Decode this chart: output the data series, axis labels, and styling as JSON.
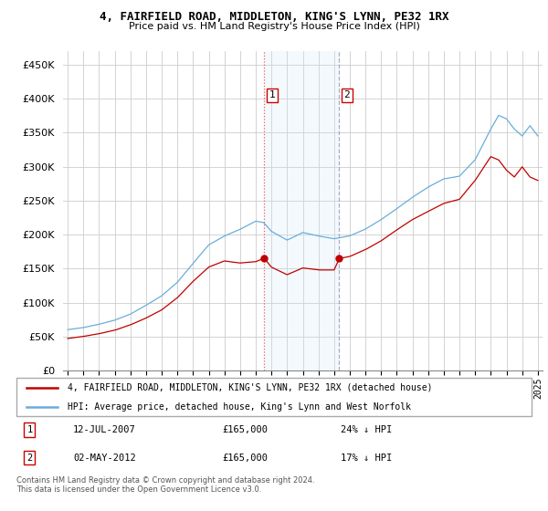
{
  "title": "4, FAIRFIELD ROAD, MIDDLETON, KING'S LYNN, PE32 1RX",
  "subtitle": "Price paid vs. HM Land Registry's House Price Index (HPI)",
  "legend_line1": "4, FAIRFIELD ROAD, MIDDLETON, KING'S LYNN, PE32 1RX (detached house)",
  "legend_line2": "HPI: Average price, detached house, King's Lynn and West Norfolk",
  "sale1_date": "12-JUL-2007",
  "sale1_price": "£165,000",
  "sale1_hpi": "24% ↓ HPI",
  "sale2_date": "02-MAY-2012",
  "sale2_price": "£165,000",
  "sale2_hpi": "17% ↓ HPI",
  "footer": "Contains HM Land Registry data © Crown copyright and database right 2024.\nThis data is licensed under the Open Government Licence v3.0.",
  "hpi_color": "#6aaddc",
  "price_color": "#c00000",
  "vline1_color": "#ff4444",
  "vline2_color": "#8888bb",
  "span_color": "#d0e8f8",
  "background_color": "#ffffff",
  "ylim": [
    0,
    470000
  ],
  "yticks": [
    0,
    50000,
    100000,
    150000,
    200000,
    250000,
    300000,
    350000,
    400000,
    450000
  ],
  "sale1_x_year": 2007.54,
  "sale1_y": 165000,
  "sale2_x_year": 2012.33,
  "sale2_y": 165000,
  "xlim_left": 1994.7,
  "xlim_right": 2025.3
}
